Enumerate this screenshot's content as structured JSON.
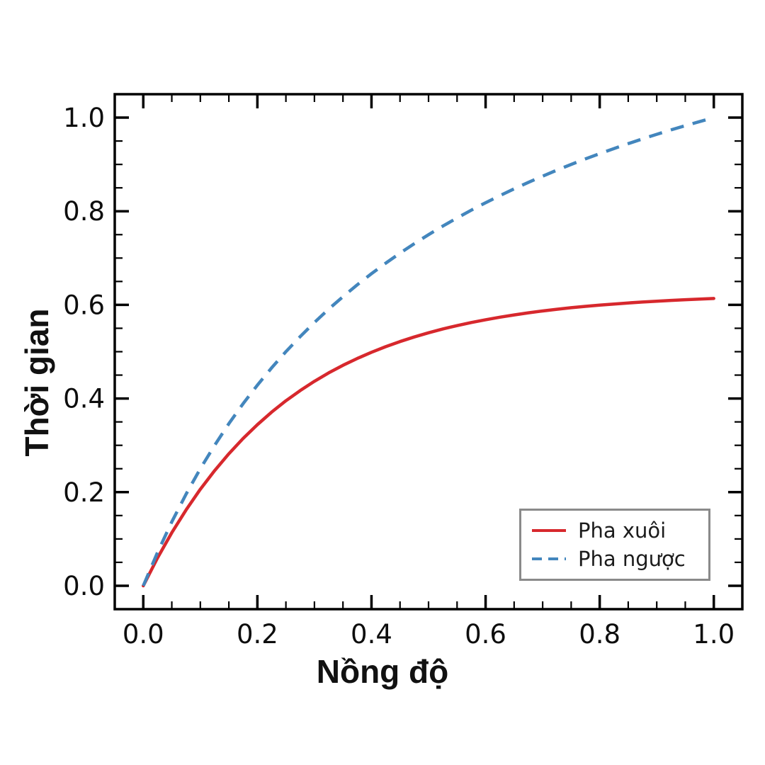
{
  "figure": {
    "background": "#ffffff"
  },
  "chart_data": {
    "type": "line",
    "title": "",
    "xlabel": "Nồng độ",
    "ylabel": "Thời gian",
    "xlim": [
      -0.05,
      1.05
    ],
    "ylim": [
      -0.05,
      1.05
    ],
    "xticks": [
      0.0,
      0.2,
      0.4,
      0.6,
      0.8,
      1.0
    ],
    "yticks": [
      0.0,
      0.2,
      0.4,
      0.6,
      0.8,
      1.0
    ],
    "xtick_labels": [
      "0.0",
      "0.2",
      "0.4",
      "0.6",
      "0.8",
      "1.0"
    ],
    "ytick_labels": [
      "0.0",
      "0.2",
      "0.4",
      "0.6",
      "0.8",
      "1.0"
    ],
    "minor_tick_step": 0.05,
    "grid": false,
    "frame_color": "#000000",
    "x": [
      0,
      0.025,
      0.05,
      0.075,
      0.1,
      0.125,
      0.15,
      0.175,
      0.2,
      0.225,
      0.25,
      0.275,
      0.3,
      0.325,
      0.35,
      0.375,
      0.4,
      0.425,
      0.45,
      0.475,
      0.5,
      0.525,
      0.55,
      0.575,
      0.6,
      0.625,
      0.65,
      0.675,
      0.7,
      0.725,
      0.75,
      0.775,
      0.8,
      0.825,
      0.85,
      0.875,
      0.9,
      0.925,
      0.95,
      0.975,
      1
    ],
    "series": [
      {
        "name": "Pha xuôi",
        "color": "#d7282d",
        "style": "solid",
        "values": [
          0,
          0.0595,
          0.1133,
          0.162,
          0.2061,
          0.2459,
          0.282,
          0.3146,
          0.3442,
          0.3709,
          0.3951,
          0.417,
          0.4368,
          0.4547,
          0.4709,
          0.4855,
          0.4988,
          0.5108,
          0.5217,
          0.5315,
          0.5404,
          0.5485,
          0.5557,
          0.5623,
          0.5683,
          0.5737,
          0.5786,
          0.583,
          0.587,
          0.5906,
          0.5939,
          0.5968,
          0.5995,
          0.6019,
          0.6041,
          0.6061,
          0.6079,
          0.6095,
          0.611,
          0.6123,
          0.6136
        ]
      },
      {
        "name": "Pha ngược",
        "color": "#4386bd",
        "style": "dashed",
        "values": [
          0,
          0.0714,
          0.1364,
          0.1957,
          0.25,
          0.3,
          0.3462,
          0.3889,
          0.4286,
          0.4655,
          0.5,
          0.5323,
          0.5625,
          0.5909,
          0.6176,
          0.6429,
          0.6667,
          0.6892,
          0.7105,
          0.7308,
          0.75,
          0.7683,
          0.7857,
          0.8023,
          0.8182,
          0.8333,
          0.8478,
          0.8617,
          0.875,
          0.8878,
          0.9,
          0.9118,
          0.9231,
          0.934,
          0.9444,
          0.9545,
          0.9643,
          0.9737,
          0.9828,
          0.9915,
          1
        ]
      }
    ],
    "legend": {
      "position": "lower right",
      "border_color": "#8a8a8a",
      "entries": [
        {
          "label": "Pha xuôi",
          "color": "#d7282d",
          "style": "solid"
        },
        {
          "label": "Pha ngược",
          "color": "#4386bd",
          "style": "dashed"
        }
      ]
    }
  }
}
